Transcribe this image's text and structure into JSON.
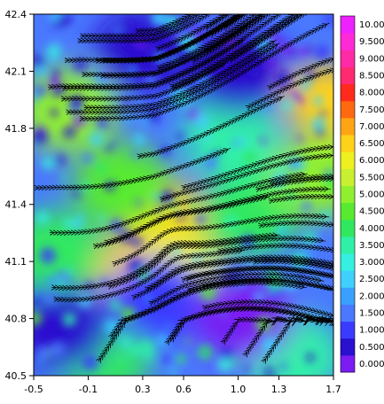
{
  "chart_data": {
    "type": "heatmap",
    "title": "",
    "xlabel": "",
    "ylabel": "",
    "xlim": [
      -0.5,
      1.7
    ],
    "ylim": [
      40.5,
      42.4
    ],
    "x_ticks": [
      "-0.5",
      "-0.1",
      "0.3",
      "0.6",
      "1.0",
      "1.3",
      "1.7"
    ],
    "y_ticks": [
      "40.5",
      "40.8",
      "41.1",
      "41.4",
      "41.8",
      "42.1",
      "42.4"
    ],
    "overlay": "streamlines",
    "colorbar": {
      "levels": [
        "0.000",
        "0.500",
        "1.000",
        "1.500",
        "2.000",
        "2.500",
        "3.000",
        "3.500",
        "4.000",
        "4.500",
        "5.000",
        "5.500",
        "6.000",
        "6.500",
        "7.000",
        "7.500",
        "8.000",
        "8.500",
        "9.000",
        "9.500",
        "10.00"
      ],
      "colors": [
        "#7a1cf2",
        "#2a10cf",
        "#3b3bff",
        "#4a78ff",
        "#3aa0ff",
        "#3fd0ff",
        "#35f0e0",
        "#30f0a8",
        "#30e860",
        "#58ea30",
        "#90f030",
        "#c8f030",
        "#eef020",
        "#ffd21a",
        "#ffa515",
        "#ff6a10",
        "#ff2a1c",
        "#ff2a70",
        "#ff2aa5",
        "#ff2ad5",
        "#ee22ff"
      ]
    },
    "hotspots": [
      {
        "x": 0.42,
        "y": 41.35,
        "value": 6.5
      },
      {
        "x": 0.25,
        "y": 41.05,
        "value": 6.8
      },
      {
        "x": 0.55,
        "y": 41.1,
        "value": 6.2
      },
      {
        "x": 1.65,
        "y": 41.95,
        "value": 6.5
      },
      {
        "x": -0.25,
        "y": 41.9,
        "value": 5.0
      },
      {
        "x": 0.15,
        "y": 41.5,
        "value": 4.5
      },
      {
        "x": -0.35,
        "y": 41.15,
        "value": 4.0
      },
      {
        "x": 1.1,
        "y": 41.35,
        "value": 4.0
      },
      {
        "x": 1.6,
        "y": 41.55,
        "value": 5.0
      },
      {
        "x": 0.0,
        "y": 40.6,
        "value": 4.0
      },
      {
        "x": 1.4,
        "y": 40.6,
        "value": 3.5
      },
      {
        "x": 0.95,
        "y": 41.75,
        "value": 3.5
      },
      {
        "x": 0.3,
        "y": 42.2,
        "value": 0.5
      },
      {
        "x": 1.0,
        "y": 42.1,
        "value": 0.5
      },
      {
        "x": 0.4,
        "y": 40.9,
        "value": 1.0
      },
      {
        "x": 1.05,
        "y": 40.8,
        "value": 0.3
      },
      {
        "x": -0.3,
        "y": 40.75,
        "value": 0.8
      }
    ]
  }
}
